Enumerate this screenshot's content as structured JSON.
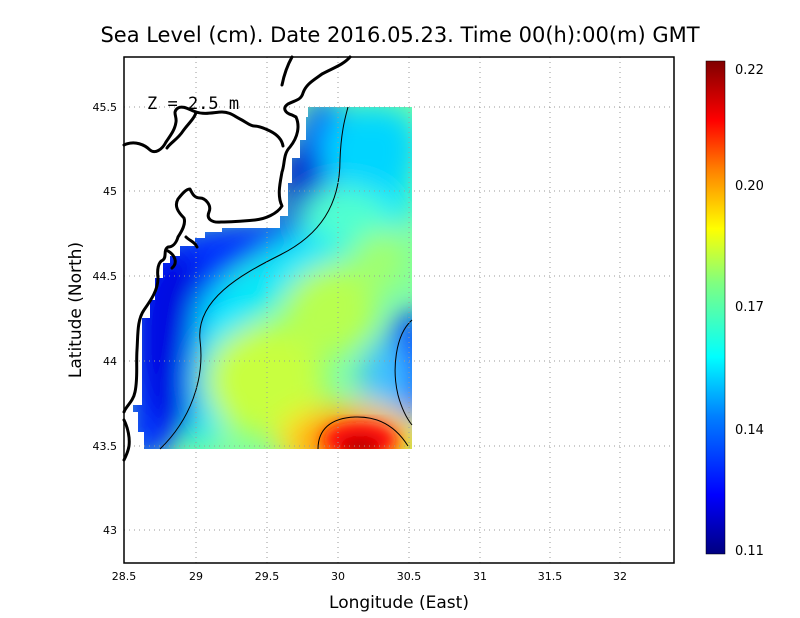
{
  "map": {
    "title": "Sea Level (cm). Date 2016.05.23. Time 00(h):00(m) GMT",
    "depth_label": "Z = 2.5 m",
    "x_axis_label": "Longitude (East)",
    "y_axis_label": "Latitude (North)",
    "x_ticks": [
      "28.5",
      "29",
      "29.5",
      "30",
      "30.5",
      "31",
      "31.5",
      "32"
    ],
    "y_ticks": [
      "45.5",
      "45",
      "44.5",
      "44",
      "43.5",
      "43"
    ],
    "colorbar": {
      "labels": [
        "0.22",
        "0.20",
        "0.17",
        "0.14",
        "0.11"
      ],
      "min": 0.11,
      "max": 0.22,
      "colors": [
        "#000080",
        "#0000ff",
        "#0080ff",
        "#00ffff",
        "#80ff80",
        "#ffff00",
        "#ff8000",
        "#ff0000",
        "#800000"
      ]
    }
  },
  "chart_data": {
    "type": "heatmap",
    "title": "Sea Level (cm). Date 2016.05.23. Time 00(h):00(m) GMT",
    "xlabel": "Longitude (East)",
    "ylabel": "Latitude (North)",
    "xlim": [
      28.5,
      32.4
    ],
    "ylim": [
      42.8,
      45.8
    ],
    "grid": true,
    "colorbar_range": [
      0.11,
      0.22
    ],
    "model_domain": {
      "lon": [
        28.65,
        30.55
      ],
      "lat": [
        43.48,
        45.5
      ]
    },
    "field_features": [
      {
        "lon": 30.2,
        "lat": 43.55,
        "value": 0.22
      },
      {
        "lon": 30.45,
        "lat": 44.0,
        "value": 0.13
      },
      {
        "lon": 28.85,
        "lat": 44.2,
        "value": 0.12
      },
      {
        "lon": 29.8,
        "lat": 45.05,
        "value": 0.12
      },
      {
        "lon": 29.6,
        "lat": 44.0,
        "value": 0.17
      },
      {
        "lon": 30.4,
        "lat": 44.75,
        "value": 0.16
      }
    ]
  }
}
